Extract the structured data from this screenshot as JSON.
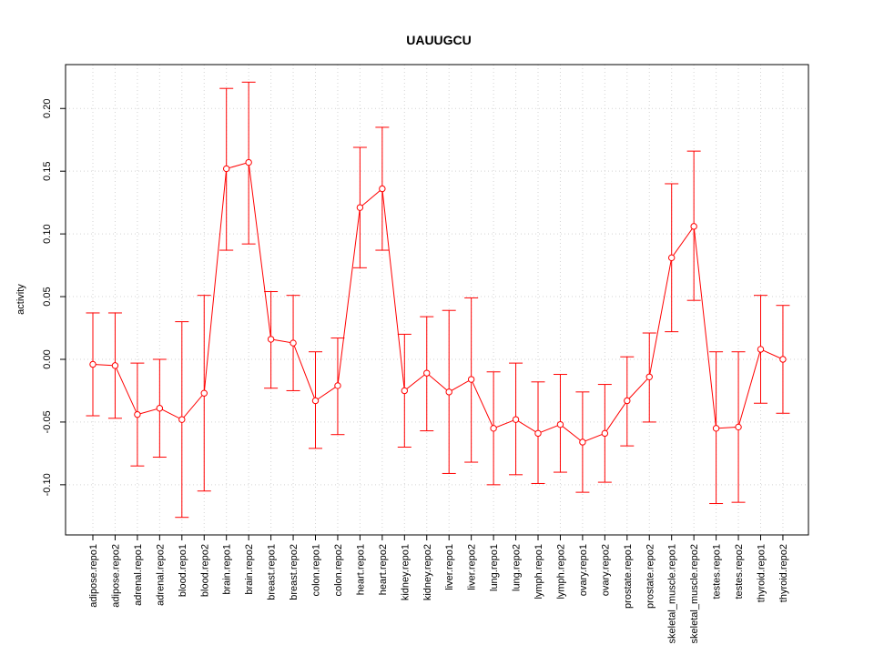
{
  "chart_data": {
    "type": "line",
    "title": "UAUUGCU",
    "xlabel": "",
    "ylabel": "activity",
    "ylim": [
      -0.14,
      0.235
    ],
    "grid": true,
    "y_ticks": [
      -0.1,
      -0.05,
      0.0,
      0.05,
      0.1,
      0.15,
      0.2
    ],
    "y_tick_labels": [
      "-0.10",
      "-0.05",
      "0.00",
      "0.05",
      "0.10",
      "0.15",
      "0.20"
    ],
    "categories": [
      "adipose.repo1",
      "adipose.repo2",
      "adrenal.repo1",
      "adrenal.repo2",
      "blood.repo1",
      "blood.repo2",
      "brain.repo1",
      "brain.repo2",
      "breast.repo1",
      "breast.repo2",
      "colon.repo1",
      "colon.repo2",
      "heart.repo1",
      "heart.repo2",
      "kidney.repo1",
      "kidney.repo2",
      "liver.repo1",
      "liver.repo2",
      "lung.repo1",
      "lung.repo2",
      "lymph.repo1",
      "lymph.repo2",
      "ovary.repo1",
      "ovary.repo2",
      "prostate.repo1",
      "prostate.repo2",
      "skeletal_muscle.repo1",
      "skeletal_muscle.repo2",
      "testes.repo1",
      "testes.repo2",
      "thyroid.repo1",
      "thyroid.repo2"
    ],
    "series": [
      {
        "color": "#ff0000",
        "values": [
          -0.004,
          -0.005,
          -0.044,
          -0.039,
          -0.048,
          -0.027,
          0.152,
          0.157,
          0.016,
          0.013,
          -0.033,
          -0.021,
          0.121,
          0.136,
          -0.025,
          -0.011,
          -0.026,
          -0.016,
          -0.055,
          -0.048,
          -0.059,
          -0.052,
          -0.066,
          -0.059,
          -0.033,
          -0.014,
          0.081,
          0.106,
          -0.055,
          -0.054,
          0.008,
          0.0
        ],
        "lower": [
          -0.045,
          -0.047,
          -0.085,
          -0.078,
          -0.126,
          -0.105,
          0.087,
          0.092,
          -0.023,
          -0.025,
          -0.071,
          -0.06,
          0.073,
          0.087,
          -0.07,
          -0.057,
          -0.091,
          -0.082,
          -0.1,
          -0.092,
          -0.099,
          -0.09,
          -0.106,
          -0.098,
          -0.069,
          -0.05,
          0.022,
          0.047,
          -0.115,
          -0.114,
          -0.035,
          -0.043
        ],
        "upper": [
          0.037,
          0.037,
          -0.003,
          0.0,
          0.03,
          0.051,
          0.216,
          0.221,
          0.054,
          0.051,
          0.006,
          0.017,
          0.169,
          0.185,
          0.02,
          0.034,
          0.039,
          0.049,
          -0.01,
          -0.003,
          -0.018,
          -0.012,
          -0.026,
          -0.02,
          0.002,
          0.021,
          0.14,
          0.166,
          0.006,
          0.006,
          0.051,
          0.043
        ]
      }
    ]
  }
}
